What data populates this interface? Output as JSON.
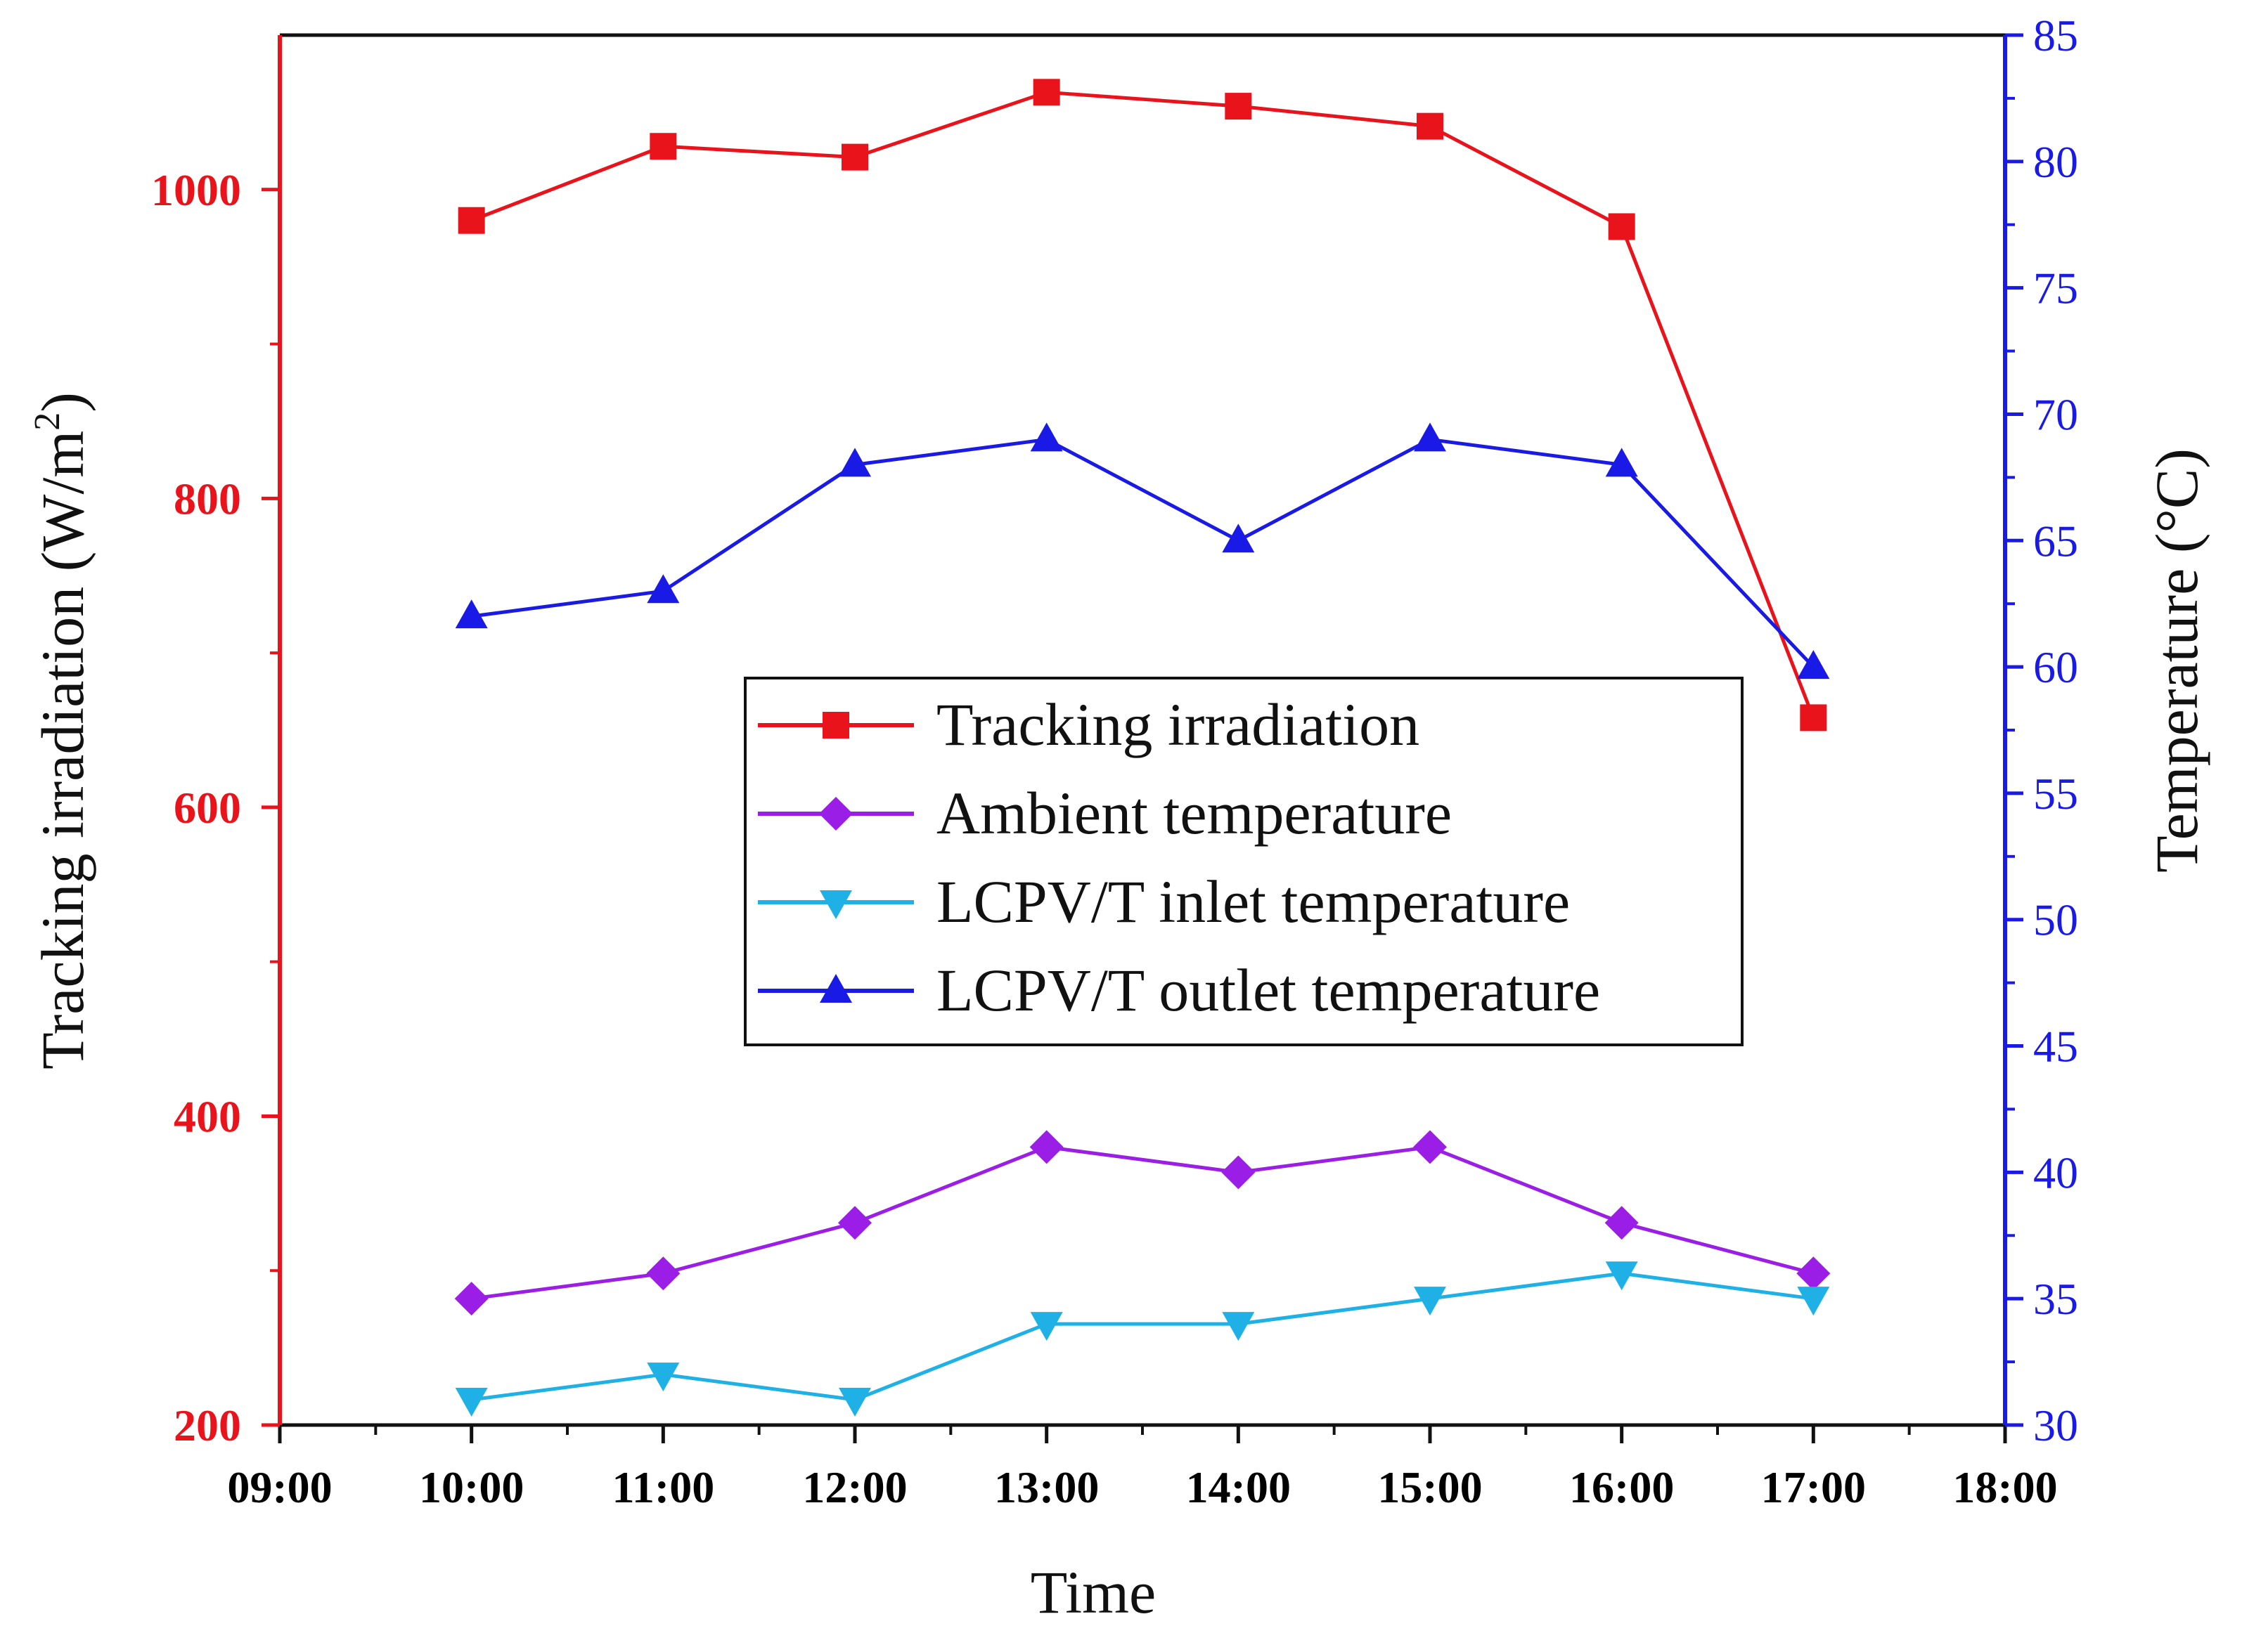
{
  "chart_data": {
    "type": "line",
    "title": "",
    "xlabel": "Time",
    "ylabel_left": "Tracking irradiation (W/m²)",
    "ylabel_left_base": "Tracking irradiation (W/m",
    "ylabel_left_sup": "2",
    "ylabel_left_close": ")",
    "ylabel_right": "Temperature (°C)",
    "x_ticks": [
      "09:00",
      "10:00",
      "11:00",
      "12:00",
      "13:00",
      "14:00",
      "15:00",
      "16:00",
      "17:00",
      "18:00"
    ],
    "y_left_ticks": [
      "200",
      "400",
      "600",
      "800",
      "1000"
    ],
    "y_right_ticks": [
      "30",
      "35",
      "40",
      "45",
      "50",
      "55",
      "60",
      "65",
      "70",
      "75",
      "80",
      "85"
    ],
    "xlim": [
      9,
      18
    ],
    "ylim_left": [
      200,
      1100
    ],
    "ylim_right": [
      30,
      85
    ],
    "legend_position": "center",
    "x": [
      10,
      11,
      12,
      13,
      14,
      15,
      16,
      17
    ],
    "series": [
      {
        "name": "Tracking irradiation",
        "axis": "left",
        "color": "#e8131b",
        "marker": "square",
        "values": [
          980,
          1028,
          1021,
          1063,
          1054,
          1041,
          976,
          658
        ]
      },
      {
        "name": "Ambient temperature",
        "axis": "right",
        "color": "#9b1ee6",
        "marker": "diamond",
        "values": [
          35,
          36,
          38,
          41,
          40,
          41,
          38,
          36
        ]
      },
      {
        "name": "LCPV/T inlet temperature",
        "axis": "right",
        "color": "#1fb0e6",
        "marker": "triangle-down",
        "values": [
          31,
          32,
          31,
          34,
          34,
          35,
          36,
          35
        ]
      },
      {
        "name": "LCPV/T outlet temperature",
        "axis": "right",
        "color": "#1a1ae6",
        "marker": "triangle-up",
        "values": [
          62,
          63,
          68,
          69,
          65,
          69,
          68,
          60
        ]
      }
    ],
    "colors": {
      "left_axis": "#e8131b",
      "right_axis": "#1a1ae6",
      "frame": "#111111"
    }
  }
}
